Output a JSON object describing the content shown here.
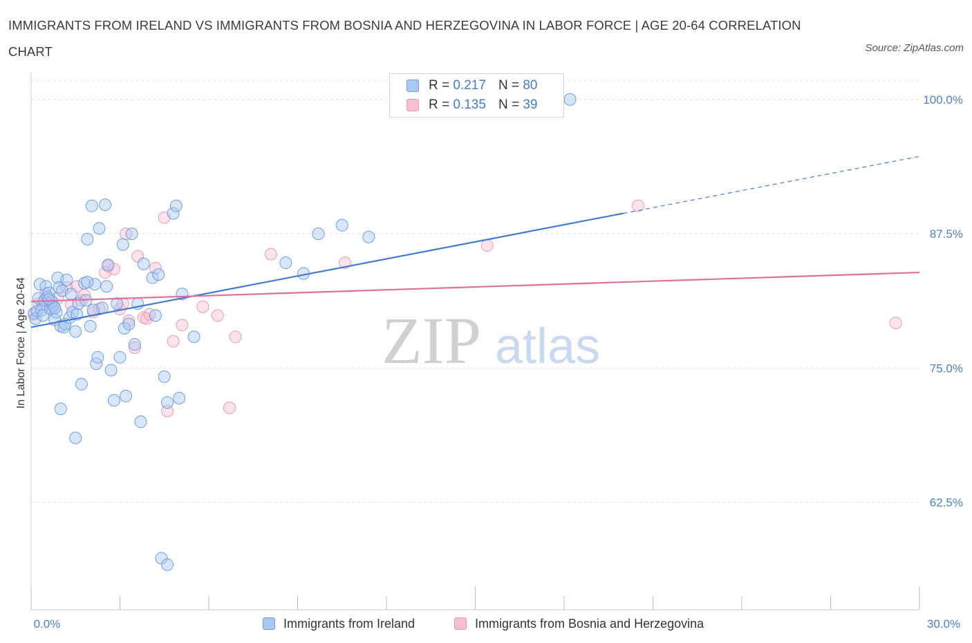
{
  "title": "IMMIGRANTS FROM IRELAND VS IMMIGRANTS FROM BOSNIA AND HERZEGOVINA IN LABOR FORCE | AGE 20-64 CORRELATION CHART",
  "source": "Source: ZipAtlas.com",
  "watermark": {
    "zip": "ZIP",
    "atlas": "atlas"
  },
  "legend": {
    "ireland": {
      "r_label": "R = ",
      "r_value": "0.217",
      "n_label": "N = ",
      "n_value": "80"
    },
    "bosnia": {
      "r_label": "R = ",
      "r_value": "0.135",
      "n_label": "N = ",
      "n_value": "39"
    }
  },
  "colors": {
    "ireland_fill": "#a9c8f3",
    "ireland_stroke": "#6d9ee0",
    "ireland_line": "#3f7bd6",
    "bosnia_fill": "#f7bfd2",
    "bosnia_stroke": "#e89ab5",
    "bosnia_line": "#e0709a",
    "tick": "#4a7fd0",
    "grid": "#dddddd"
  },
  "chart_data": {
    "type": "scatter",
    "title": "IMMIGRANTS FROM IRELAND VS IMMIGRANTS FROM BOSNIA AND HERZEGOVINA IN LABOR FORCE | AGE 20-64 CORRELATION CHART",
    "xlabel": "",
    "ylabel": "In Labor Force | Age 20-64",
    "xlim": [
      0,
      30
    ],
    "ylim": [
      52.5,
      102.5
    ],
    "x_tick_labels": [
      "0.0%",
      "30.0%"
    ],
    "y_ticks": [
      62.5,
      75.0,
      87.5,
      100.0
    ],
    "y_tick_labels": [
      "62.5%",
      "75.0%",
      "87.5%",
      "100.0%"
    ],
    "legend_position": "top-center",
    "series": [
      {
        "name": "Immigrants from Ireland",
        "trend": {
          "x0": 0,
          "y0": 78.8,
          "x1": 20.0,
          "y1": 89.4,
          "dash_to_x": 30,
          "dash_to_y": 94.7
        },
        "points": [
          [
            0.1,
            80.1
          ],
          [
            0.15,
            79.6
          ],
          [
            0.2,
            80.3
          ],
          [
            0.25,
            81.5
          ],
          [
            0.3,
            82.8
          ],
          [
            0.35,
            80.4
          ],
          [
            0.4,
            79.9
          ],
          [
            0.45,
            81.3
          ],
          [
            0.5,
            82.6
          ],
          [
            0.55,
            81.6
          ],
          [
            0.6,
            82.0
          ],
          [
            0.65,
            80.5
          ],
          [
            0.7,
            81.2
          ],
          [
            0.75,
            80.8
          ],
          [
            0.8,
            79.5
          ],
          [
            0.85,
            80.2
          ],
          [
            0.9,
            83.4
          ],
          [
            0.95,
            82.5
          ],
          [
            1.0,
            78.9
          ],
          [
            1.05,
            82.2
          ],
          [
            1.1,
            78.8
          ],
          [
            1.15,
            79.1
          ],
          [
            1.2,
            83.2
          ],
          [
            1.3,
            79.7
          ],
          [
            1.35,
            81.9
          ],
          [
            1.4,
            80.2
          ],
          [
            1.5,
            78.4
          ],
          [
            1.55,
            80.0
          ],
          [
            1.6,
            81.0
          ],
          [
            1.7,
            73.5
          ],
          [
            1.8,
            82.9
          ],
          [
            1.85,
            81.3
          ],
          [
            1.9,
            87.0
          ],
          [
            2.0,
            78.9
          ],
          [
            2.05,
            90.1
          ],
          [
            2.15,
            82.8
          ],
          [
            2.2,
            75.4
          ],
          [
            2.25,
            76.0
          ],
          [
            2.3,
            88.0
          ],
          [
            2.4,
            80.6
          ],
          [
            2.5,
            90.2
          ],
          [
            2.55,
            82.6
          ],
          [
            2.6,
            84.6
          ],
          [
            2.7,
            74.8
          ],
          [
            2.8,
            72.0
          ],
          [
            2.9,
            81.0
          ],
          [
            3.0,
            76.0
          ],
          [
            3.15,
            78.7
          ],
          [
            3.2,
            72.4
          ],
          [
            3.1,
            86.5
          ],
          [
            3.3,
            79.1
          ],
          [
            3.4,
            87.5
          ],
          [
            3.5,
            77.2
          ],
          [
            3.6,
            81.0
          ],
          [
            3.7,
            70.0
          ],
          [
            3.8,
            84.7
          ],
          [
            4.1,
            83.4
          ],
          [
            4.2,
            79.9
          ],
          [
            4.3,
            83.7
          ],
          [
            4.4,
            57.3
          ],
          [
            4.6,
            56.7
          ],
          [
            4.5,
            74.2
          ],
          [
            4.6,
            71.8
          ],
          [
            4.8,
            89.4
          ],
          [
            4.9,
            90.1
          ],
          [
            5.0,
            72.2
          ],
          [
            5.1,
            81.9
          ],
          [
            5.5,
            77.9
          ],
          [
            8.6,
            84.8
          ],
          [
            9.2,
            83.8
          ],
          [
            9.7,
            87.5
          ],
          [
            10.5,
            88.3
          ],
          [
            11.4,
            87.2
          ],
          [
            1.9,
            83.0
          ],
          [
            0.6,
            81.4
          ],
          [
            2.1,
            80.4
          ],
          [
            18.2,
            100.0
          ],
          [
            1.5,
            68.5
          ],
          [
            1.0,
            71.2
          ],
          [
            0.8,
            80.6
          ]
        ]
      },
      {
        "name": "Immigrants from Bosnia and Herzegovina",
        "trend": {
          "x0": 0,
          "y0": 81.2,
          "x1": 30,
          "y1": 83.9
        },
        "points": [
          [
            0.1,
            80.0
          ],
          [
            0.25,
            81.0
          ],
          [
            0.5,
            81.9
          ],
          [
            0.7,
            80.6
          ],
          [
            0.9,
            81.5
          ],
          [
            1.2,
            82.5
          ],
          [
            1.35,
            80.9
          ],
          [
            1.55,
            82.6
          ],
          [
            1.7,
            81.3
          ],
          [
            1.8,
            81.8
          ],
          [
            2.1,
            80.2
          ],
          [
            2.3,
            80.5
          ],
          [
            2.5,
            83.9
          ],
          [
            2.6,
            84.5
          ],
          [
            2.8,
            84.2
          ],
          [
            3.0,
            80.5
          ],
          [
            3.1,
            81.0
          ],
          [
            3.2,
            87.5
          ],
          [
            3.3,
            79.4
          ],
          [
            3.5,
            76.9
          ],
          [
            3.6,
            85.4
          ],
          [
            3.8,
            79.7
          ],
          [
            3.9,
            79.6
          ],
          [
            4.0,
            80.0
          ],
          [
            4.2,
            84.3
          ],
          [
            4.5,
            89.0
          ],
          [
            4.6,
            71.0
          ],
          [
            4.8,
            77.5
          ],
          [
            5.1,
            79.0
          ],
          [
            5.8,
            80.7
          ],
          [
            6.3,
            79.9
          ],
          [
            6.7,
            71.3
          ],
          [
            6.9,
            77.9
          ],
          [
            8.1,
            85.6
          ],
          [
            10.6,
            84.8
          ],
          [
            15.4,
            86.4
          ],
          [
            20.5,
            90.1
          ],
          [
            29.2,
            79.2
          ],
          [
            0.4,
            81.0
          ]
        ]
      }
    ]
  },
  "bottom_legend": {
    "ireland": "Immigrants from Ireland",
    "bosnia": "Immigrants from Bosnia and Herzegovina"
  }
}
